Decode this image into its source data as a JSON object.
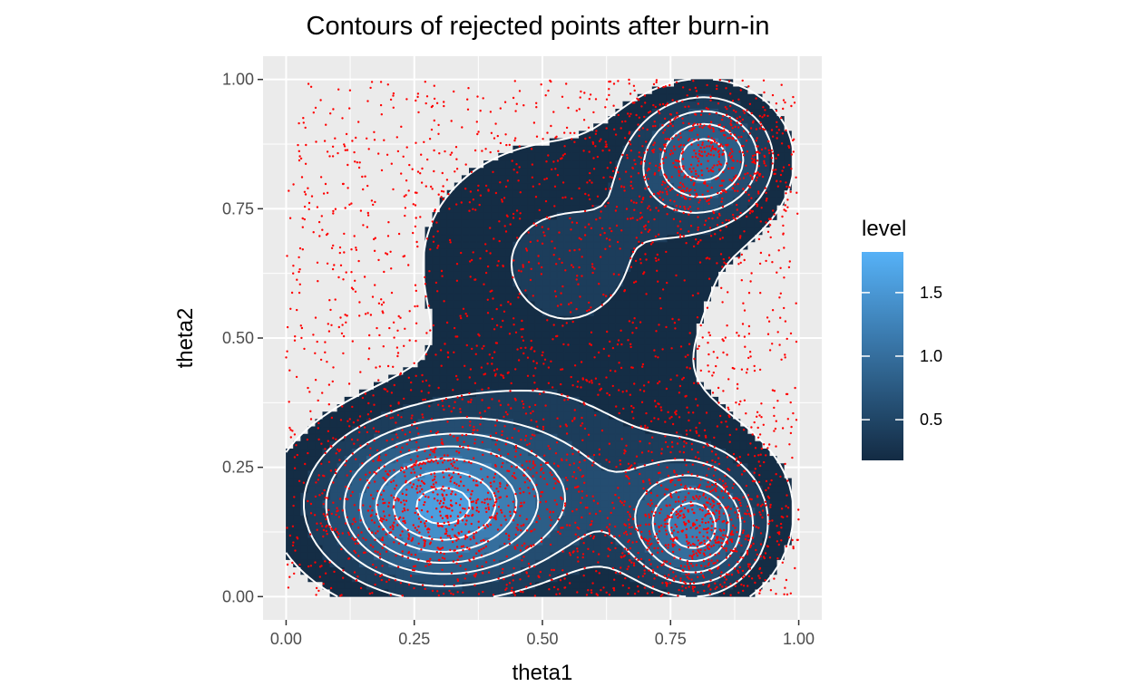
{
  "chart_data": {
    "type": "contour",
    "title": "Contours of rejected points after burn-in",
    "xlabel": "theta1",
    "ylabel": "theta2",
    "xlim": [
      -0.045,
      1.045
    ],
    "ylim": [
      -0.045,
      1.045
    ],
    "x_ticks": [
      0,
      0.25,
      0.5,
      0.75,
      1
    ],
    "x_tick_labels": [
      "0.00",
      "0.25",
      "0.50",
      "0.75",
      "1.00"
    ],
    "y_ticks": [
      0,
      0.25,
      0.5,
      0.75,
      1
    ],
    "y_tick_labels": [
      "0.00",
      "0.25",
      "0.50",
      "0.75",
      "1.00"
    ],
    "grid": true,
    "legend": {
      "title": "level",
      "position": "right",
      "min": 0.18,
      "max": 1.82,
      "ticks": [
        0.5,
        1.0,
        1.5
      ],
      "tick_labels": [
        "0.5",
        "1.0",
        "1.5"
      ],
      "color_low": "#132B43",
      "color_high": "#56B1F7"
    },
    "levels": [
      0.2,
      0.4,
      0.6,
      0.8,
      1.0,
      1.2,
      1.4,
      1.6,
      1.8
    ],
    "density_components": [
      {
        "cx": 0.29,
        "cy": 0.17,
        "sx": 0.14,
        "sy": 0.1,
        "w": 1.25
      },
      {
        "cx": 0.8,
        "cy": 0.13,
        "sx": 0.08,
        "sy": 0.08,
        "w": 1.05
      },
      {
        "cx": 0.82,
        "cy": 0.85,
        "sx": 0.09,
        "sy": 0.08,
        "w": 1.0
      },
      {
        "cx": 0.5,
        "cy": 0.2,
        "sx": 0.3,
        "sy": 0.14,
        "w": 0.55
      },
      {
        "cx": 0.55,
        "cy": 0.65,
        "sx": 0.22,
        "sy": 0.18,
        "w": 0.45
      }
    ],
    "points": {
      "color": "#FF0000",
      "count_uniform": 1600,
      "count_clustered": 2600
    },
    "colors": {
      "panel_background": "#EBEBEB",
      "grid": "#FFFFFF",
      "contour_line": "#FFFFFF"
    }
  }
}
